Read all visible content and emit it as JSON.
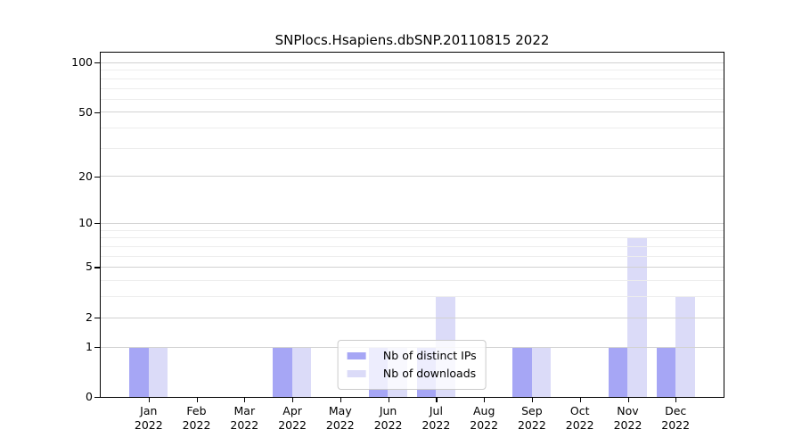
{
  "chart_data": {
    "type": "bar",
    "title": "SNPlocs.Hsapiens.dbSNP.20110815 2022",
    "x_tick_months": [
      "Jan",
      "Feb",
      "Mar",
      "Apr",
      "May",
      "Jun",
      "Jul",
      "Aug",
      "Sep",
      "Oct",
      "Nov",
      "Dec"
    ],
    "x_tick_year": "2022",
    "series": [
      {
        "name": "Nb of distinct IPs",
        "color": "#a6a6f5",
        "values": [
          1,
          0,
          0,
          1,
          0,
          1,
          1,
          0,
          1,
          0,
          1,
          1
        ]
      },
      {
        "name": "Nb of downloads",
        "color": "#dbdbf8",
        "values": [
          1,
          0,
          0,
          1,
          0,
          1,
          3,
          0,
          1,
          0,
          8,
          3
        ]
      }
    ],
    "y_scale": "log1p",
    "y_tick_labels": [
      100,
      50,
      20,
      10,
      5,
      2,
      1,
      0
    ],
    "y_minor_gridlines": [
      3,
      4,
      6,
      7,
      8,
      9,
      30,
      40,
      60,
      70,
      80,
      90
    ],
    "ylim": [
      0,
      114
    ],
    "grid": true,
    "legend_position": "lower center",
    "axis_color": "#000000",
    "grid_major_color": "#d2d2d2",
    "grid_minor_color": "#ededed"
  }
}
